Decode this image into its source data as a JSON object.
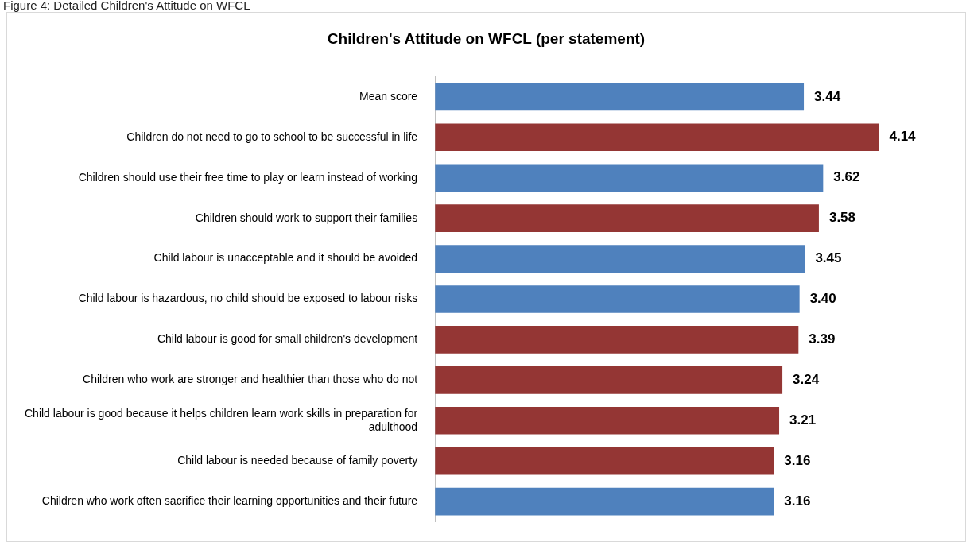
{
  "chart_data": {
    "type": "bar",
    "orientation": "horizontal",
    "title": "Children's Attitude on WFCL (per statement)",
    "annotations": [
      "Figure 4: Detailed Children's Attitude on WFCL"
    ],
    "categories": [
      "Mean score",
      "Children do not need to go to school to be successful in life",
      "Children should use their free time to play or learn instead of working",
      "Children should work to support their families",
      "Child labour is unacceptable and it should be avoided",
      "Child labour is hazardous, no child should be exposed to labour risks",
      "Child labour is good for small children's development",
      "Children who work are stronger and healthier than those who do not",
      "Child labour is good because it helps children learn work skills in preparation for adulthood",
      "Child labour is needed because of family poverty",
      "Children who work often sacrifice their learning opportunities and their future"
    ],
    "values": [
      3.44,
      4.14,
      3.62,
      3.58,
      3.45,
      3.4,
      3.39,
      3.24,
      3.21,
      3.16,
      3.16
    ],
    "value_labels": [
      "3.44",
      "4.14",
      "3.62",
      "3.58",
      "3.45",
      "3.40",
      "3.39",
      "3.24",
      "3.21",
      "3.16",
      "3.16"
    ],
    "colors": [
      "#4f81bd",
      "#943634",
      "#4f81bd",
      "#943634",
      "#4f81bd",
      "#4f81bd",
      "#943634",
      "#943634",
      "#943634",
      "#943634",
      "#4f81bd"
    ],
    "legend": false
  }
}
